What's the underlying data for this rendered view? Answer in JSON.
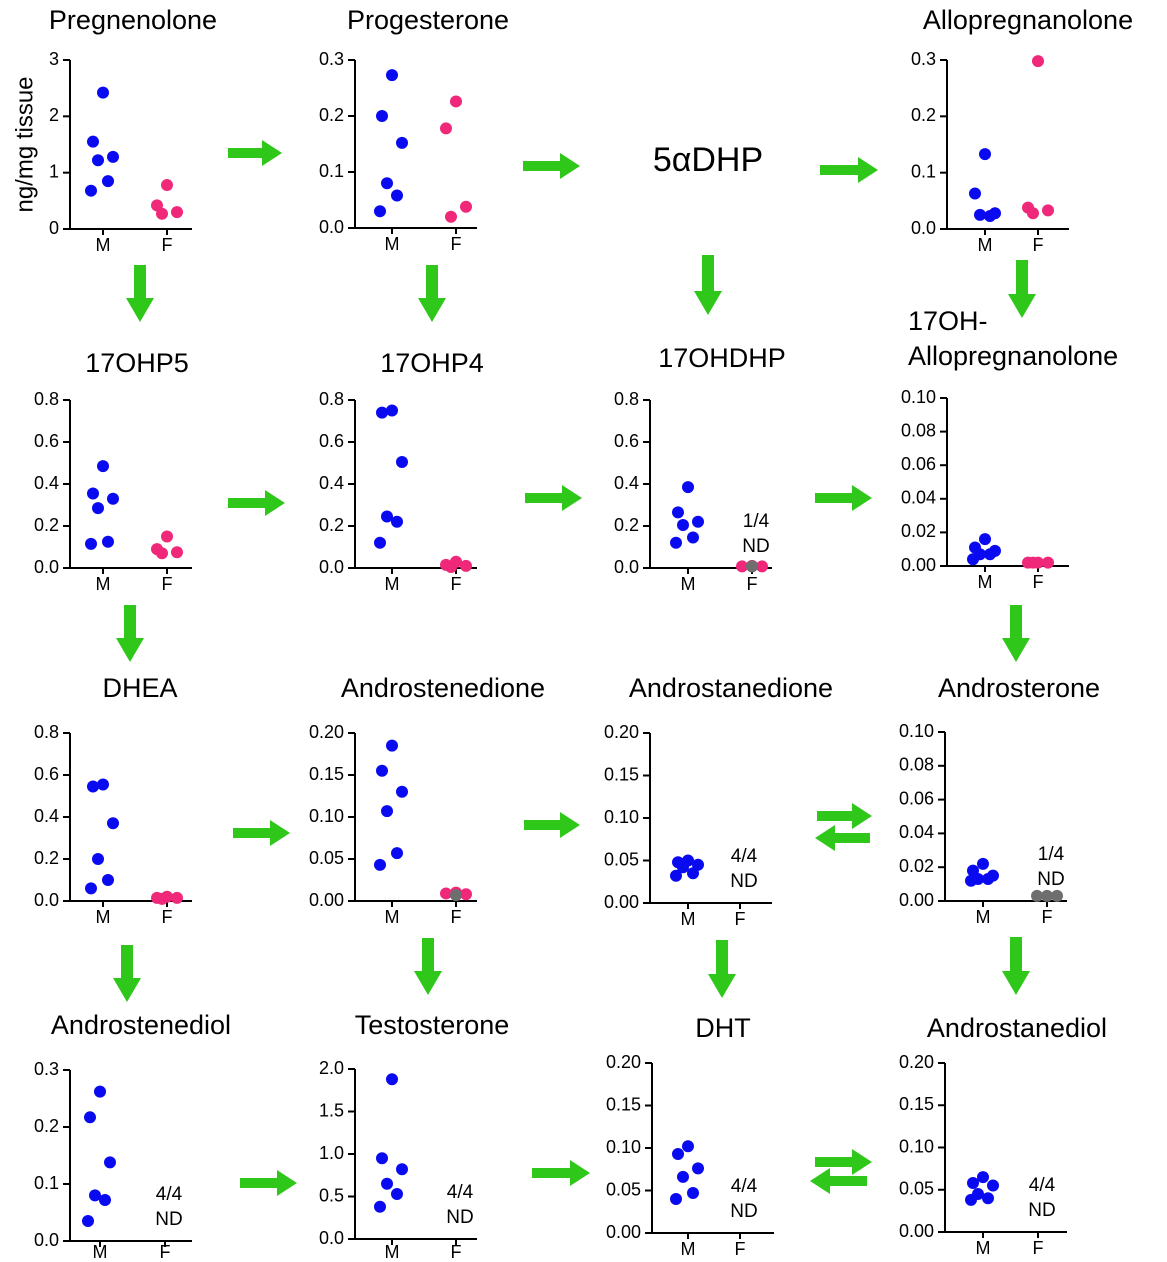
{
  "intermediate": "5αDHP",
  "chart_data": [
    {
      "type": "strip",
      "title": "Pregnenolone",
      "ylabel": "ng/mg tissue",
      "categories": [
        "M",
        "F"
      ],
      "values": [
        [
          2.42,
          1.55,
          1.28,
          1.22,
          0.85,
          0.68
        ],
        [
          0.78,
          0.42,
          0.3,
          0.27
        ]
      ],
      "colors": [
        "#0a0af0",
        "#f0287a"
      ],
      "ylim": [
        0,
        3
      ],
      "yticks": [
        0,
        1,
        2,
        3
      ]
    },
    {
      "type": "strip",
      "title": "Progesterone",
      "categories": [
        "M",
        "F"
      ],
      "values": [
        [
          0.273,
          0.2,
          0.152,
          0.08,
          0.058,
          0.03
        ],
        [
          0.226,
          0.178,
          0.038,
          0.02
        ]
      ],
      "colors": [
        "#0a0af0",
        "#f0287a"
      ],
      "ylim": [
        0,
        0.3
      ],
      "yticks": [
        {
          "value": 0,
          "label": "0.0"
        },
        0.1,
        0.2,
        0.3
      ]
    },
    {
      "type": "strip",
      "title": "Allopregnanolone",
      "categories": [
        "M",
        "F"
      ],
      "values": [
        [
          0.133,
          0.063,
          0.028,
          0.025,
          0.023
        ],
        [
          0.298,
          0.038,
          0.033,
          0.028
        ]
      ],
      "colors": [
        "#0a0af0",
        "#f0287a"
      ],
      "ylim": [
        0,
        0.3
      ],
      "yticks": [
        {
          "value": 0,
          "label": "0.0"
        },
        0.1,
        0.2,
        0.3
      ]
    },
    {
      "type": "strip",
      "title": "17OHP5",
      "categories": [
        "M",
        "F"
      ],
      "values": [
        [
          0.485,
          0.355,
          0.33,
          0.285,
          0.125,
          0.115
        ],
        [
          0.15,
          0.09,
          0.075,
          0.07
        ]
      ],
      "colors": [
        "#0a0af0",
        "#f0287a"
      ],
      "ylim": [
        0,
        0.8
      ],
      "yticks": [
        {
          "value": 0,
          "label": "0.0"
        },
        0.2,
        0.4,
        0.6,
        0.8
      ]
    },
    {
      "type": "strip",
      "title": "17OHP4",
      "categories": [
        "M",
        "F"
      ],
      "values": [
        [
          0.75,
          0.74,
          0.505,
          0.245,
          0.22,
          0.12
        ],
        [
          0.03,
          0.015,
          0.01,
          0.005
        ]
      ],
      "colors": [
        "#0a0af0",
        "#f0287a"
      ],
      "ylim": [
        0,
        0.8
      ],
      "yticks": [
        {
          "value": 0,
          "label": "0.0"
        },
        0.2,
        0.4,
        0.6,
        0.8
      ]
    },
    {
      "type": "strip",
      "title": "17OHDHP",
      "categories": [
        "M",
        "F"
      ],
      "values": [
        [
          0.385,
          0.265,
          0.22,
          0.205,
          0.145,
          0.12
        ],
        [
          0.01,
          0.008,
          0.008
        ]
      ],
      "colors": [
        "#0a0af0",
        "#f0287a"
      ],
      "nd_values": [
        [],
        [
          0.008
        ]
      ],
      "nd_color": "#6e6e6e",
      "annotation": [
        "1/4",
        "ND"
      ],
      "ylim": [
        0,
        0.8
      ],
      "yticks": [
        {
          "value": 0,
          "label": "0.0"
        },
        0.2,
        0.4,
        0.6,
        0.8
      ]
    },
    {
      "type": "strip",
      "title": [
        "17OH-",
        "Allopregnanolone"
      ],
      "categories": [
        "M",
        "F"
      ],
      "values": [
        [
          0.016,
          0.011,
          0.009,
          0.007,
          0.007,
          0.004
        ],
        [
          0.002,
          0.002,
          0.002,
          0.002
        ]
      ],
      "colors": [
        "#0a0af0",
        "#f0287a"
      ],
      "ylim": [
        0,
        0.1
      ],
      "yticks": [
        {
          "value": 0,
          "label": "0.00"
        },
        0.02,
        0.04,
        0.06,
        0.08,
        {
          "value": 0.1,
          "label": "0.10"
        }
      ]
    },
    {
      "type": "strip",
      "title": "DHEA",
      "categories": [
        "M",
        "F"
      ],
      "values": [
        [
          0.555,
          0.545,
          0.37,
          0.2,
          0.1,
          0.06
        ],
        [
          0.02,
          0.015,
          0.015,
          0.01
        ]
      ],
      "colors": [
        "#0a0af0",
        "#f0287a"
      ],
      "ylim": [
        0,
        0.8
      ],
      "yticks": [
        {
          "value": 0,
          "label": "0.0"
        },
        0.2,
        0.4,
        0.6,
        0.8
      ]
    },
    {
      "type": "strip",
      "title": "Androstenedione",
      "categories": [
        "M",
        "F"
      ],
      "values": [
        [
          0.185,
          0.155,
          0.13,
          0.107,
          0.057,
          0.043
        ],
        [
          0.01,
          0.009,
          0.008
        ]
      ],
      "colors": [
        "#0a0af0",
        "#f0287a"
      ],
      "nd_values": [
        [],
        [
          0.007
        ]
      ],
      "nd_color": "#6e6e6e",
      "ylim": [
        0,
        0.2
      ],
      "yticks": [
        {
          "value": 0,
          "label": "0.00"
        },
        0.05,
        {
          "value": 0.1,
          "label": "0.10"
        },
        0.15,
        {
          "value": 0.2,
          "label": "0.20"
        }
      ]
    },
    {
      "type": "strip",
      "title": "Androstanedione",
      "categories": [
        "M",
        "F"
      ],
      "values": [
        [
          0.05,
          0.048,
          0.045,
          0.042,
          0.035,
          0.032
        ],
        []
      ],
      "colors": [
        "#0a0af0",
        "#f0287a"
      ],
      "annotation": [
        "4/4",
        "ND"
      ],
      "ylim": [
        0,
        0.2
      ],
      "yticks": [
        {
          "value": 0,
          "label": "0.00"
        },
        0.05,
        {
          "value": 0.1,
          "label": "0.10"
        },
        0.15,
        {
          "value": 0.2,
          "label": "0.20"
        }
      ]
    },
    {
      "type": "strip",
      "title": "Androsterone",
      "categories": [
        "M",
        "F"
      ],
      "values": [
        [
          0.022,
          0.018,
          0.015,
          0.013,
          0.013,
          0.012
        ],
        []
      ],
      "colors": [
        "#0a0af0",
        "#f0287a"
      ],
      "nd_values": [
        [],
        [
          0.003,
          0.003,
          0.003
        ]
      ],
      "nd_color": "#6e6e6e",
      "annotation": [
        "1/4",
        "ND"
      ],
      "ylim": [
        0,
        0.1
      ],
      "yticks": [
        {
          "value": 0,
          "label": "0.00"
        },
        0.02,
        0.04,
        0.06,
        0.08,
        {
          "value": 0.1,
          "label": "0.10"
        }
      ]
    },
    {
      "type": "strip",
      "title": "Androstenediol",
      "categories": [
        "M",
        "F"
      ],
      "values": [
        [
          0.262,
          0.217,
          0.138,
          0.08,
          0.072,
          0.035
        ],
        []
      ],
      "colors": [
        "#0a0af0",
        "#f0287a"
      ],
      "annotation": [
        "4/4",
        "ND"
      ],
      "ylim": [
        0,
        0.3
      ],
      "yticks": [
        {
          "value": 0,
          "label": "0.0"
        },
        0.1,
        0.2,
        0.3
      ]
    },
    {
      "type": "strip",
      "title": "Testosterone",
      "categories": [
        "M",
        "F"
      ],
      "values": [
        [
          1.88,
          0.95,
          0.82,
          0.65,
          0.53,
          0.38
        ],
        []
      ],
      "colors": [
        "#0a0af0",
        "#f0287a"
      ],
      "annotation": [
        "4/4",
        "ND"
      ],
      "ylim": [
        0,
        2
      ],
      "yticks": [
        {
          "value": 0,
          "label": "0.0"
        },
        0.5,
        {
          "value": 1,
          "label": "1.0"
        },
        1.5,
        {
          "value": 2,
          "label": "2.0"
        }
      ]
    },
    {
      "type": "strip",
      "title": "DHT",
      "categories": [
        "M",
        "F"
      ],
      "values": [
        [
          0.102,
          0.093,
          0.076,
          0.066,
          0.047,
          0.04
        ],
        []
      ],
      "colors": [
        "#0a0af0",
        "#f0287a"
      ],
      "annotation": [
        "4/4",
        "ND"
      ],
      "ylim": [
        0,
        0.2
      ],
      "yticks": [
        {
          "value": 0,
          "label": "0.00"
        },
        0.05,
        {
          "value": 0.1,
          "label": "0.10"
        },
        0.15,
        {
          "value": 0.2,
          "label": "0.20"
        }
      ]
    },
    {
      "type": "strip",
      "title": "Androstanediol",
      "categories": [
        "M",
        "F"
      ],
      "values": [
        [
          0.065,
          0.058,
          0.055,
          0.045,
          0.04,
          0.038
        ],
        []
      ],
      "colors": [
        "#0a0af0",
        "#f0287a"
      ],
      "annotation": [
        "4/4",
        "ND"
      ],
      "ylim": [
        0,
        0.2
      ],
      "yticks": [
        {
          "value": 0,
          "label": "0.00"
        },
        0.05,
        {
          "value": 0.1,
          "label": "0.10"
        },
        0.15,
        {
          "value": 0.2,
          "label": "0.20"
        }
      ]
    }
  ]
}
